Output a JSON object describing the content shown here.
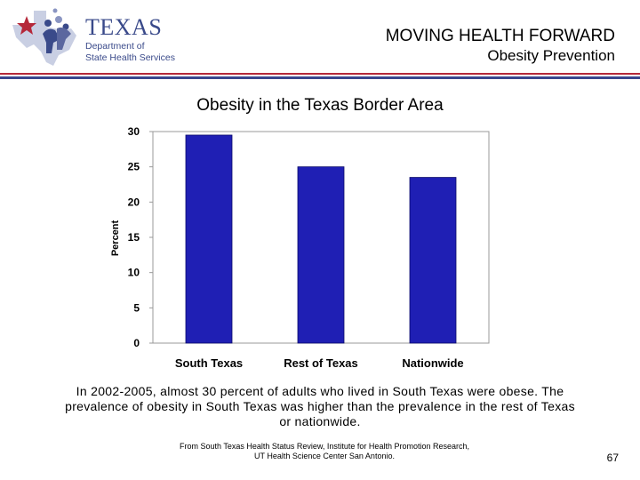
{
  "header": {
    "logo_word": "TEXAS",
    "logo_line1": "Department of",
    "logo_line2": "State Health Services",
    "title": "MOVING HEALTH FORWARD",
    "subtitle": "Obesity Prevention"
  },
  "colors": {
    "bar": "#1f1fb4",
    "rule_red": "#b5283a",
    "rule_blue": "#39468f",
    "logo_blue": "#3a4a8a"
  },
  "chart_data": {
    "type": "bar",
    "title": "Obesity in the Texas Border Area",
    "xlabel": "",
    "ylabel": "Percent",
    "categories": [
      "South Texas",
      "Rest of Texas",
      "Nationwide"
    ],
    "values": [
      29.5,
      25.0,
      23.5
    ],
    "ylim": [
      0,
      30
    ],
    "yticks": [
      0,
      5,
      10,
      15,
      20,
      25,
      30
    ],
    "grid": false,
    "legend": "none"
  },
  "caption": "In 2002-2005, almost 30 percent of adults who lived in South Texas were obese.  The prevalence of obesity in South Texas was higher than the prevalence in the rest of Texas or nationwide.",
  "source_line1": "From South Texas Health Status Review, Institute for Health Promotion Research,",
  "source_line2": "UT Health Science Center San Antonio.",
  "page_number": "67"
}
